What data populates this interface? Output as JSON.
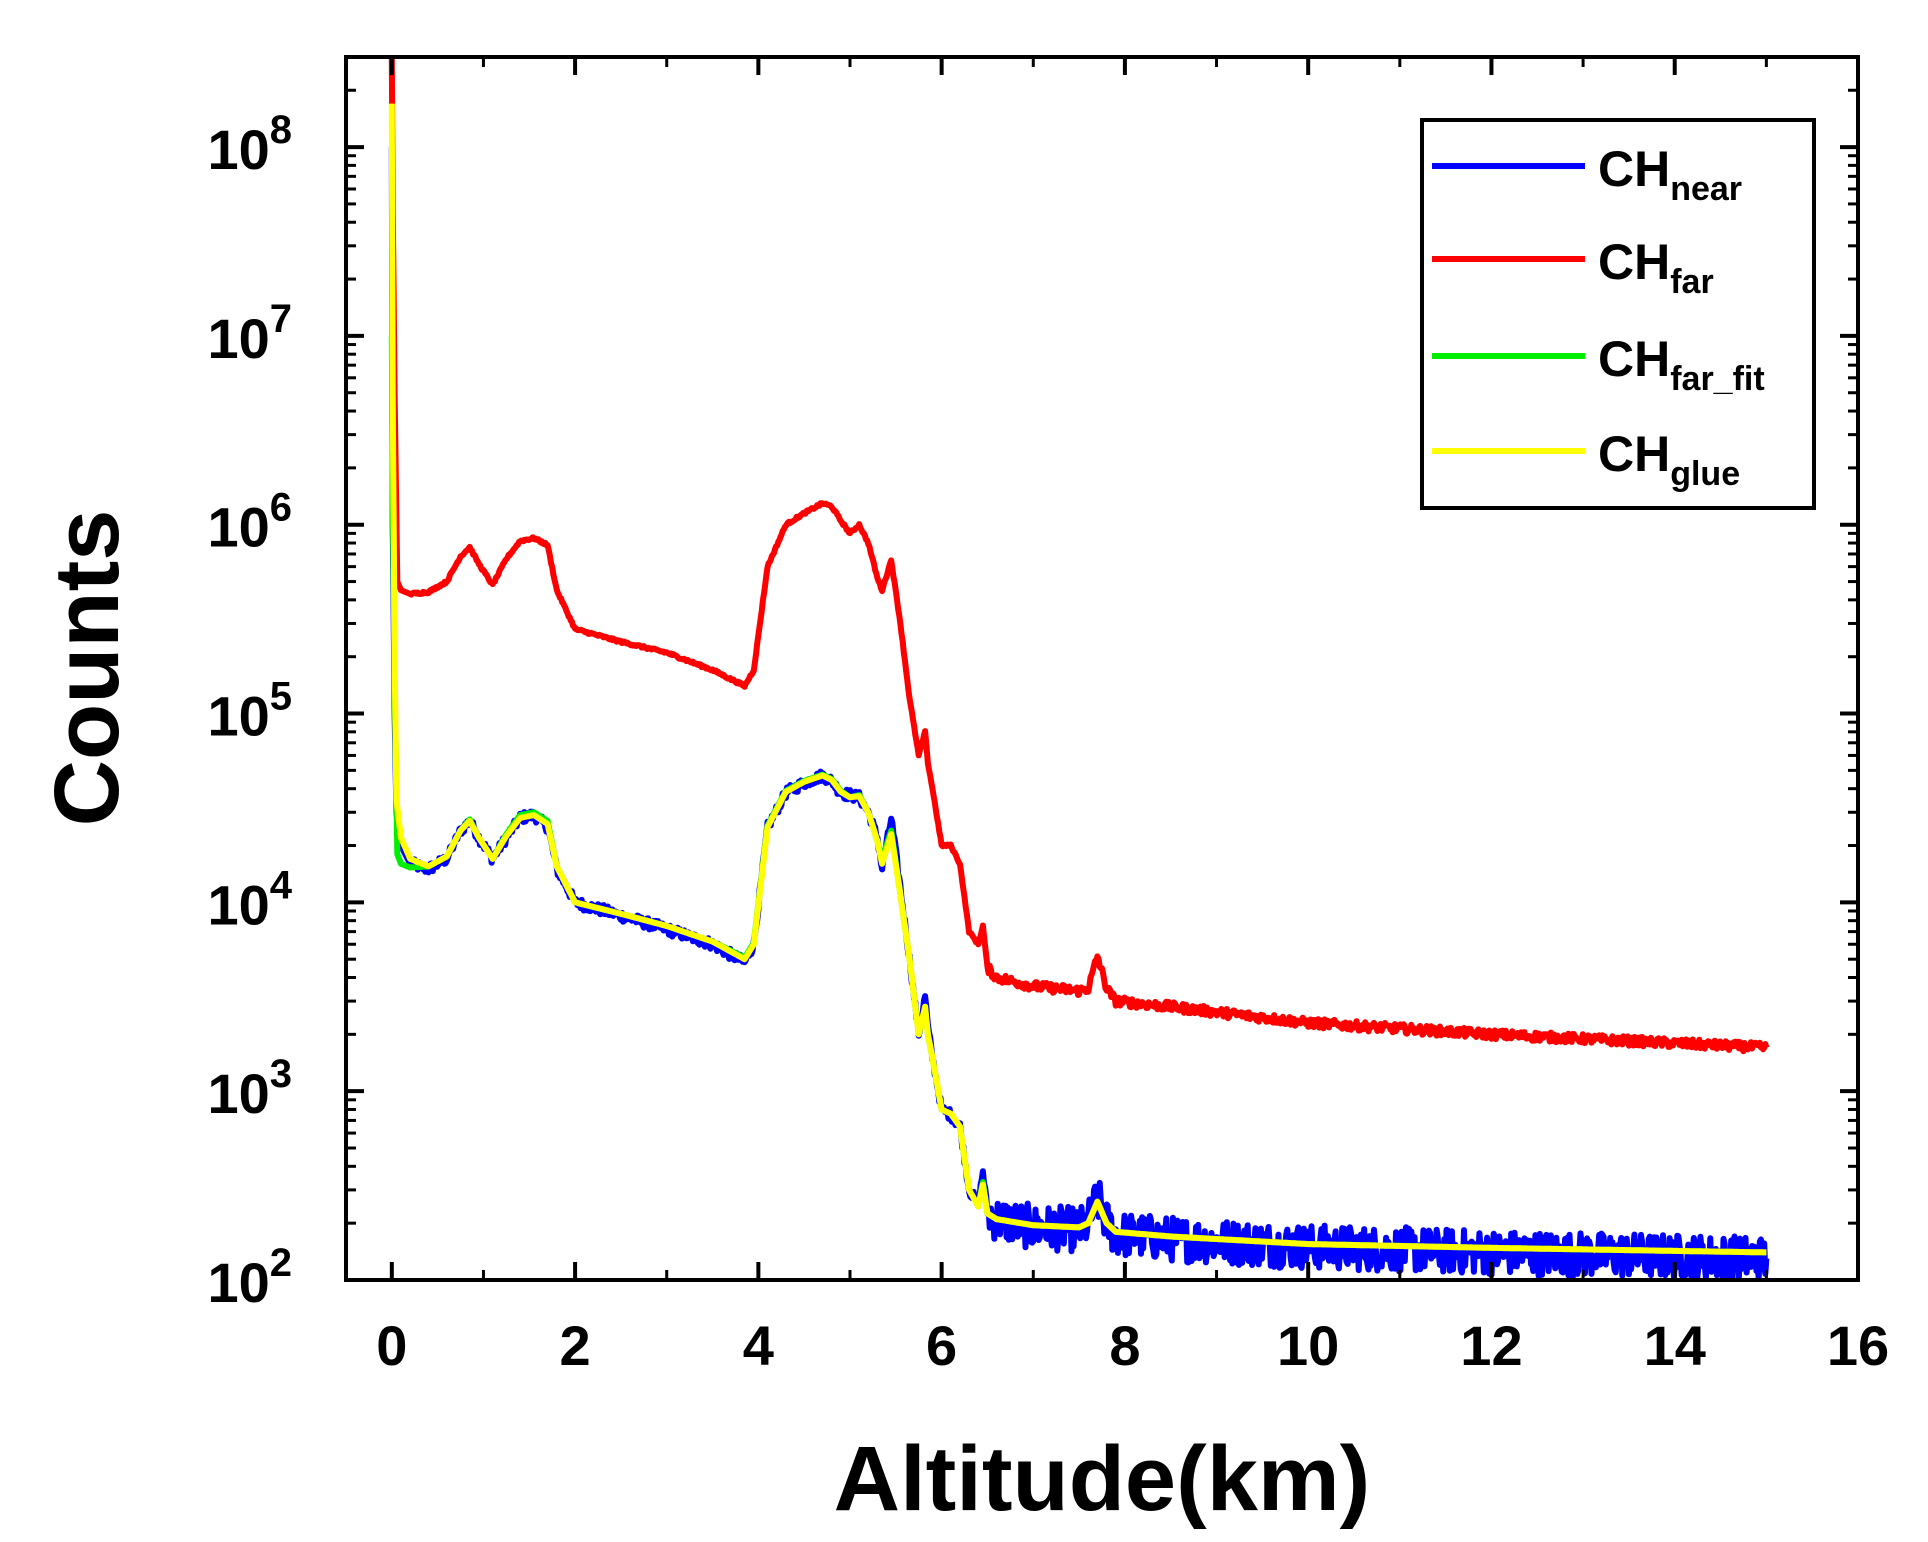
{
  "chart_data": {
    "type": "line",
    "title": "",
    "xlabel": "Altitude(km)",
    "ylabel": "Counts",
    "xlim": [
      -0.5,
      16
    ],
    "ylim": [
      100,
      300000000
    ],
    "yscale": "log",
    "x_ticks": [
      0,
      2,
      4,
      6,
      8,
      10,
      12,
      14,
      16
    ],
    "x_tick_labels": [
      "0",
      "2",
      "4",
      "6",
      "8",
      "10",
      "12",
      "14",
      "16"
    ],
    "y_ticks": [
      {
        "value": 100,
        "base": "10",
        "exp": "2"
      },
      {
        "value": 1000,
        "base": "10",
        "exp": "3"
      },
      {
        "value": 10000,
        "base": "10",
        "exp": "4"
      },
      {
        "value": 100000,
        "base": "10",
        "exp": "5"
      },
      {
        "value": 1000000,
        "base": "10",
        "exp": "6"
      },
      {
        "value": 10000000,
        "base": "10",
        "exp": "7"
      },
      {
        "value": 100000000,
        "base": "10",
        "exp": "8"
      }
    ],
    "legend_position": "top-right",
    "series": [
      {
        "name": "CH_near",
        "label_main": "CH",
        "label_sub": "near",
        "color": "#0000ff",
        "noise": 0.12,
        "x": [
          0,
          0.01,
          0.03,
          0.05,
          0.1,
          0.2,
          0.4,
          0.6,
          0.75,
          0.85,
          0.95,
          1.1,
          1.25,
          1.4,
          1.55,
          1.7,
          1.8,
          2.0,
          2.5,
          3.0,
          3.5,
          3.85,
          3.95,
          4.1,
          4.3,
          4.5,
          4.7,
          4.8,
          4.9,
          5.0,
          5.1,
          5.2,
          5.3,
          5.35,
          5.45,
          5.55,
          5.65,
          5.75,
          5.82,
          5.85,
          5.9,
          6.0,
          6.1,
          6.2,
          6.3,
          6.4,
          6.45,
          6.5,
          6.6,
          7.0,
          7.5,
          7.6,
          7.7,
          7.8,
          7.9,
          8.5,
          10,
          12,
          15
        ],
        "y": [
          100000000,
          1000000,
          100000,
          30000,
          20000,
          16000,
          15000,
          17000,
          24000,
          27000,
          22000,
          17000,
          22000,
          28000,
          29000,
          25000,
          15000,
          10000,
          8500,
          7200,
          6000,
          4800,
          6000,
          25000,
          38000,
          43000,
          47000,
          44000,
          38000,
          37000,
          36000,
          30000,
          22000,
          15000,
          28000,
          12000,
          5000,
          2000,
          3200,
          2200,
          1500,
          800,
          750,
          650,
          300,
          250,
          380,
          230,
          210,
          190,
          185,
          200,
          270,
          200,
          175,
          165,
          150,
          140,
          130
        ]
      },
      {
        "name": "CH_far",
        "label_main": "CH",
        "label_sub": "far",
        "color": "#ff0000",
        "noise": 0.025,
        "x": [
          0,
          0.01,
          0.03,
          0.06,
          0.1,
          0.2,
          0.4,
          0.6,
          0.75,
          0.85,
          0.95,
          1.1,
          1.25,
          1.4,
          1.55,
          1.7,
          1.8,
          2.0,
          2.5,
          3.0,
          3.5,
          3.85,
          3.95,
          4.1,
          4.3,
          4.5,
          4.7,
          4.8,
          4.9,
          5.0,
          5.1,
          5.2,
          5.3,
          5.35,
          5.45,
          5.55,
          5.65,
          5.75,
          5.82,
          5.85,
          5.9,
          6.0,
          6.1,
          6.2,
          6.3,
          6.4,
          6.45,
          6.5,
          6.6,
          7.0,
          7.5,
          7.6,
          7.7,
          7.8,
          7.9,
          8.5,
          10,
          12,
          15
        ],
        "y": [
          300000000,
          50000000,
          5000000,
          500000,
          450000,
          430000,
          440000,
          500000,
          680000,
          760000,
          620000,
          480000,
          660000,
          820000,
          850000,
          780000,
          450000,
          280000,
          240000,
          210000,
          170000,
          140000,
          170000,
          600000,
          1000000,
          1150000,
          1300000,
          1250000,
          1050000,
          900000,
          1000000,
          800000,
          520000,
          450000,
          650000,
          300000,
          120000,
          60000,
          80000,
          55000,
          40000,
          20000,
          20000,
          16000,
          7000,
          6000,
          7500,
          4500,
          4000,
          3600,
          3400,
          3500,
          5200,
          3500,
          3000,
          2800,
          2300,
          2000,
          1700
        ]
      },
      {
        "name": "CH_far_fit",
        "label_main": "CH",
        "label_sub": "far_fit",
        "color": "#00ee00",
        "noise": 0,
        "x": [
          0,
          0.01,
          0.03,
          0.06,
          0.1,
          0.2,
          0.4,
          0.6,
          0.75,
          0.85,
          0.95,
          1.1,
          1.25,
          1.4,
          1.55,
          1.7,
          1.8,
          2.0,
          2.5,
          3.0,
          3.5,
          3.85,
          3.95,
          4.1,
          4.3,
          4.5,
          4.7,
          4.8,
          4.9,
          5.0,
          5.1,
          5.2,
          5.3,
          5.35,
          5.45,
          5.55,
          5.65,
          5.75,
          5.82,
          5.85,
          5.9,
          6.0,
          6.1,
          6.2,
          6.3,
          6.4,
          6.45,
          6.5,
          6.6,
          7.0,
          7.5,
          7.6,
          7.7,
          7.8,
          7.9,
          8.5,
          10,
          12,
          15
        ],
        "y": [
          10000000,
          1500000,
          150000,
          18000,
          16000,
          15300,
          15500,
          17500,
          24000,
          27500,
          22000,
          17000,
          23000,
          29000,
          30000,
          27000,
          15500,
          10000,
          8700,
          7500,
          6200,
          5100,
          6100,
          25500,
          39000,
          44000,
          47500,
          45000,
          39000,
          36000,
          37000,
          30000,
          21000,
          17000,
          24000,
          11000,
          5000,
          2000,
          2800,
          2000,
          1500,
          800,
          760,
          650,
          300,
          245,
          330,
          225,
          210,
          195,
          190,
          200,
          260,
          200,
          180,
          170,
          155,
          148,
          140
        ]
      },
      {
        "name": "CH_glue",
        "label_main": "CH",
        "label_sub": "glue",
        "color": "#ffff00",
        "noise": 0,
        "x": [
          0,
          0.01,
          0.03,
          0.05,
          0.1,
          0.2,
          0.4,
          0.6,
          0.75,
          0.85,
          0.95,
          1.1,
          1.25,
          1.4,
          1.55,
          1.7,
          1.8,
          2.0,
          2.5,
          3.0,
          3.5,
          3.85,
          3.95,
          4.1,
          4.3,
          4.5,
          4.7,
          4.8,
          4.9,
          5.0,
          5.1,
          5.2,
          5.3,
          5.35,
          5.45,
          5.55,
          5.65,
          5.75,
          5.82,
          5.85,
          5.9,
          6.0,
          6.1,
          6.2,
          6.3,
          6.4,
          6.45,
          6.5,
          6.6,
          7.0,
          7.5,
          7.6,
          7.7,
          7.8,
          7.9,
          8.5,
          10,
          12,
          15
        ],
        "y": [
          170000000,
          5000000,
          200000,
          35000,
          22000,
          17000,
          15500,
          17500,
          24000,
          27000,
          22000,
          17000,
          22500,
          28000,
          29000,
          26000,
          15500,
          10000,
          8700,
          7500,
          6200,
          5000,
          6000,
          25000,
          38500,
          43500,
          47000,
          44500,
          38500,
          36000,
          36500,
          30000,
          21000,
          16000,
          23000,
          11000,
          5000,
          2000,
          2800,
          2000,
          1500,
          800,
          760,
          650,
          300,
          245,
          320,
          225,
          210,
          195,
          190,
          200,
          260,
          200,
          180,
          170,
          155,
          148,
          140
        ]
      }
    ]
  }
}
